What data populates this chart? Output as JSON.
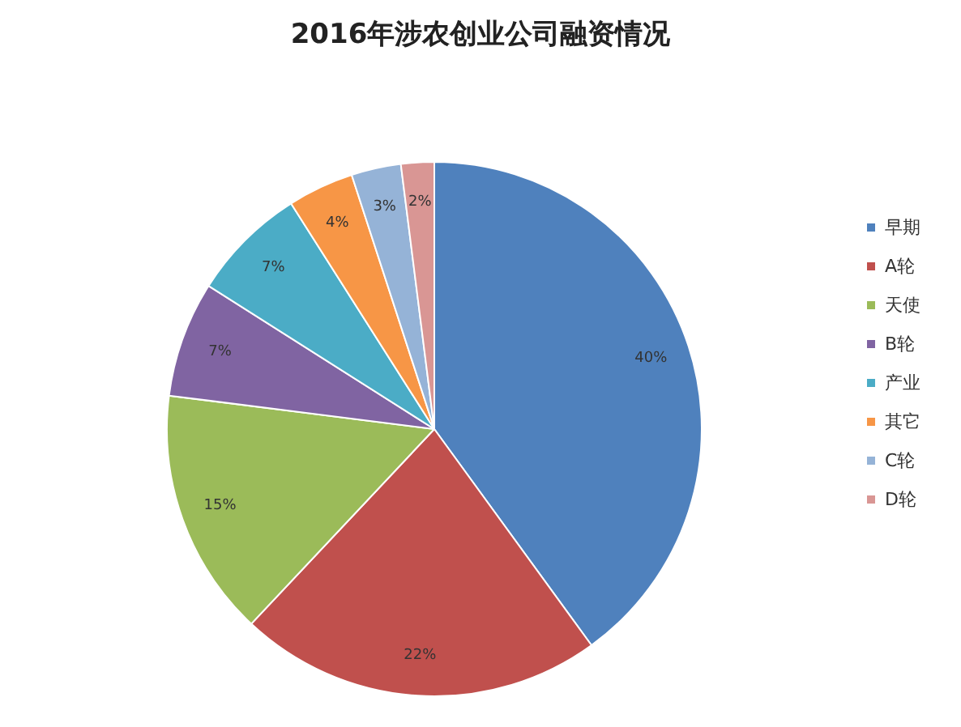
{
  "chart_data": {
    "type": "pie",
    "title": "2016年涉农创业公司融资情况",
    "categories": [
      "早期",
      "A轮",
      "天使",
      "B轮",
      "产业",
      "其它",
      "C轮",
      "D轮"
    ],
    "values": [
      40,
      22,
      15,
      7,
      7,
      4,
      3,
      2
    ],
    "value_labels": [
      "40%",
      "22%",
      "15%",
      "7%",
      "7%",
      "4%",
      "3%",
      "2%"
    ],
    "colors": [
      "#4f81bd",
      "#c0504d",
      "#9bbb59",
      "#8064a2",
      "#4bacc6",
      "#f79646",
      "#95b3d7",
      "#d99694"
    ],
    "legend": "right"
  }
}
